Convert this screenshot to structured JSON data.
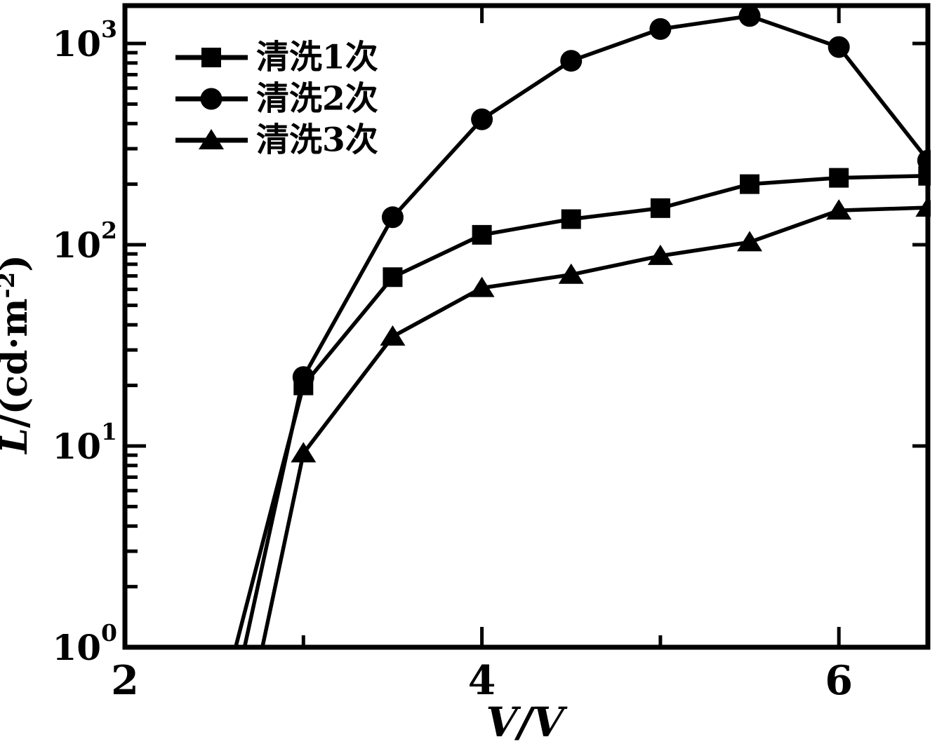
{
  "figure": {
    "background": "#ffffff",
    "ink": "#000000"
  },
  "chart_data": {
    "type": "line",
    "title": "",
    "xlabel": "V/V",
    "ylabel": "L/(cd·m⁻²)",
    "ylabel_rich": [
      {
        "t": "L",
        "italic": true
      },
      {
        "t": "/(cd·m"
      },
      {
        "t": "-2",
        "sup": true
      },
      {
        "t": ")"
      }
    ],
    "grid": false,
    "legend_position": "top-left",
    "x_axis": {
      "label": "V/V",
      "min": 2,
      "max": 6.5,
      "major_ticks": [
        2,
        4,
        6
      ],
      "minor_ticks": [
        3,
        5
      ],
      "tick_labels": [
        {
          "value": 2,
          "text": "2"
        },
        {
          "value": 4,
          "text": "4"
        },
        {
          "value": 6,
          "text": "6"
        }
      ]
    },
    "y_axis": {
      "label": "L/(cd·m⁻²)",
      "scale": "log",
      "min": 1,
      "max": 1540,
      "major_ticks": [
        1,
        10,
        100,
        1000
      ],
      "minor_ticks_per_decade": [
        2,
        3,
        4,
        5,
        6,
        7,
        8,
        9
      ],
      "tick_labels": [
        {
          "value": 1,
          "mantissa": "10",
          "exponent": "0"
        },
        {
          "value": 10,
          "mantissa": "10",
          "exponent": "1"
        },
        {
          "value": 100,
          "mantissa": "10",
          "exponent": "2"
        },
        {
          "value": 1000,
          "mantissa": "10",
          "exponent": "3"
        }
      ]
    },
    "x": [
      3,
      3.5,
      4,
      4.5,
      5,
      5.5,
      6,
      6.5
    ],
    "series": [
      {
        "name": "清洗1次",
        "marker": "square",
        "color": "#000000",
        "axis_entry": {
          "x": 2.62,
          "y": 1.0
        },
        "values": [
          20,
          69,
          112,
          134,
          152,
          200,
          215,
          220
        ]
      },
      {
        "name": "清洗2次",
        "marker": "circle",
        "color": "#000000",
        "axis_entry": {
          "x": 2.67,
          "y": 1.0
        },
        "values": [
          22,
          137,
          420,
          820,
          1180,
          1370,
          960,
          262
        ]
      },
      {
        "name": "清洗3次",
        "marker": "triangle",
        "color": "#000000",
        "axis_entry": {
          "x": 2.77,
          "y": 1.0
        },
        "values": [
          9.2,
          35,
          61,
          71,
          88,
          103,
          148,
          153
        ]
      }
    ]
  }
}
